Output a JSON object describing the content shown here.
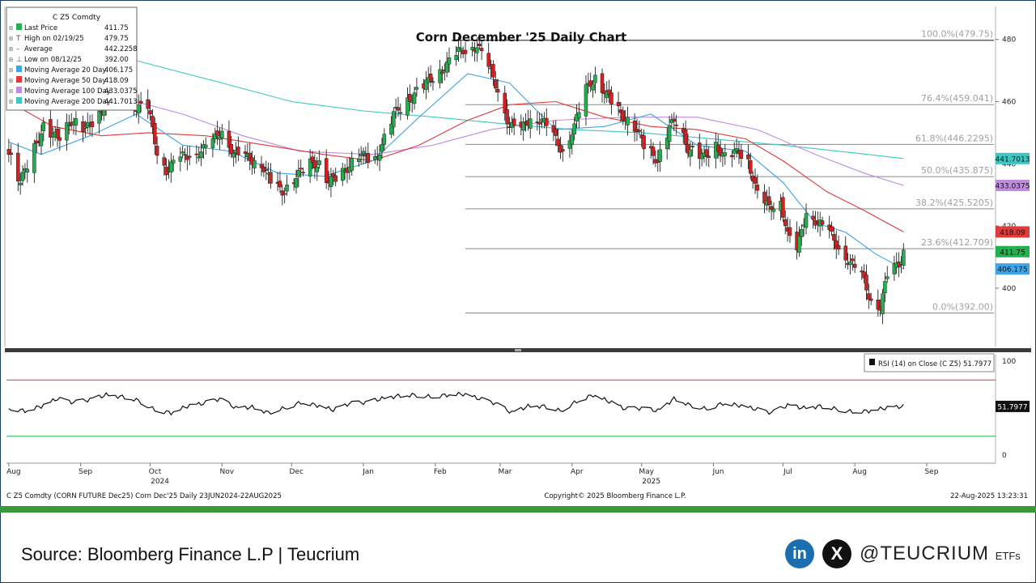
{
  "footer": {
    "source": "Source: Bloomberg Finance L.P | Teucrium",
    "handle": "@TEUCRIUM",
    "handle_suffix": "ETFs",
    "linkedin_glyph": "in",
    "x_glyph": "X"
  },
  "colors": {
    "up": "#22b14c",
    "down": "#d42020",
    "ma20": "#3fa3e6",
    "ma50": "#e03a3a",
    "ma100": "#c08ae0",
    "ma200": "#3cc8c0",
    "fib": "#888888",
    "brand_green": "#3a9a3a"
  },
  "chart_data": [
    {
      "type": "candlestick",
      "title": "Corn December '25 Daily Chart",
      "ticker": "C Z5 Comdty",
      "legend_placement": "top-left",
      "legend": [
        {
          "label": "Last Price",
          "value": "411.75",
          "marker": "green-square"
        },
        {
          "label": "High on 02/19/25",
          "value": "479.75",
          "marker": "T"
        },
        {
          "label": "Average",
          "value": "442.2258",
          "marker": "dash"
        },
        {
          "label": "Low on 08/12/25",
          "value": "392.00",
          "marker": "L"
        },
        {
          "label": "Moving Average 20 Day",
          "value": "406.175",
          "marker": "ma20"
        },
        {
          "label": "Moving Average 50 Day",
          "value": "418.09",
          "marker": "ma50"
        },
        {
          "label": "Moving Average 100 Day",
          "value": "433.0375",
          "marker": "ma100"
        },
        {
          "label": "Moving Average 200 Day",
          "value": "441.7013",
          "marker": "ma200"
        }
      ],
      "ylim": [
        382,
        488
      ],
      "y_ticks": [
        400,
        420,
        440,
        460,
        480
      ],
      "fib_levels": [
        {
          "label": "100.0%(479.75)",
          "value": 479.75
        },
        {
          "label": "76.4%(459.041)",
          "value": 459.041
        },
        {
          "label": "61.8%(446.2295)",
          "value": 446.2295
        },
        {
          "label": "50.0%(435.875)",
          "value": 435.875
        },
        {
          "label": "38.2%(425.5205)",
          "value": 425.5205
        },
        {
          "label": "23.6%(412.709)",
          "value": 412.709
        },
        {
          "label": "0.0%(392.00)",
          "value": 392.0
        }
      ],
      "price_tags": [
        {
          "label": "441.7013",
          "value": 441.7013,
          "color": "#3cc8c0"
        },
        {
          "label": "433.0375",
          "value": 433.0375,
          "color": "#c08ae0"
        },
        {
          "label": "418.09",
          "value": 418.09,
          "color": "#e03a3a"
        },
        {
          "label": "411.75",
          "value": 411.75,
          "color": "#22b14c"
        },
        {
          "label": "406.175",
          "value": 406.175,
          "color": "#3fa3e6"
        }
      ],
      "price_path": [
        [
          "2024-08-01",
          444
        ],
        [
          "2024-08-06",
          434
        ],
        [
          "2024-08-12",
          445
        ],
        [
          "2024-08-16",
          452
        ],
        [
          "2024-08-22",
          448
        ],
        [
          "2024-08-28",
          454
        ],
        [
          "2024-09-03",
          451
        ],
        [
          "2024-09-09",
          456
        ],
        [
          "2024-09-13",
          462
        ],
        [
          "2024-09-19",
          464
        ],
        [
          "2024-09-25",
          458
        ],
        [
          "2024-09-30",
          458
        ],
        [
          "2024-10-04",
          444
        ],
        [
          "2024-10-08",
          438
        ],
        [
          "2024-10-14",
          442
        ],
        [
          "2024-10-18",
          443
        ],
        [
          "2024-10-23",
          444
        ],
        [
          "2024-10-29",
          448
        ],
        [
          "2024-11-01",
          451
        ],
        [
          "2024-11-06",
          443
        ],
        [
          "2024-11-12",
          442
        ],
        [
          "2024-11-18",
          440
        ],
        [
          "2024-11-22",
          434
        ],
        [
          "2024-11-27",
          431
        ],
        [
          "2024-12-03",
          436
        ],
        [
          "2024-12-09",
          440
        ],
        [
          "2024-12-13",
          440
        ],
        [
          "2024-12-17",
          434
        ],
        [
          "2024-12-23",
          437
        ],
        [
          "2024-12-30",
          443
        ],
        [
          "2025-01-06",
          441
        ],
        [
          "2025-01-10",
          448
        ],
        [
          "2025-01-14",
          456
        ],
        [
          "2025-01-21",
          461
        ],
        [
          "2025-01-27",
          465
        ],
        [
          "2025-01-31",
          468
        ],
        [
          "2025-02-05",
          471
        ],
        [
          "2025-02-11",
          476
        ],
        [
          "2025-02-19",
          478
        ],
        [
          "2025-02-24",
          471
        ],
        [
          "2025-02-28",
          464
        ],
        [
          "2025-03-05",
          452
        ],
        [
          "2025-03-10",
          451
        ],
        [
          "2025-03-14",
          455
        ],
        [
          "2025-03-19",
          454
        ],
        [
          "2025-03-24",
          449
        ],
        [
          "2025-03-28",
          444
        ],
        [
          "2025-04-02",
          452
        ],
        [
          "2025-04-07",
          464
        ],
        [
          "2025-04-11",
          468
        ],
        [
          "2025-04-16",
          462
        ],
        [
          "2025-04-22",
          456
        ],
        [
          "2025-04-28",
          452
        ],
        [
          "2025-05-02",
          446
        ],
        [
          "2025-05-08",
          441
        ],
        [
          "2025-05-13",
          452
        ],
        [
          "2025-05-16",
          454
        ],
        [
          "2025-05-21",
          445
        ],
        [
          "2025-05-28",
          442
        ],
        [
          "2025-06-02",
          446
        ],
        [
          "2025-06-06",
          442
        ],
        [
          "2025-06-12",
          444
        ],
        [
          "2025-06-16",
          441
        ],
        [
          "2025-06-20",
          430
        ],
        [
          "2025-06-25",
          426
        ],
        [
          "2025-06-30",
          428
        ],
        [
          "2025-07-03",
          417
        ],
        [
          "2025-07-07",
          412
        ],
        [
          "2025-07-11",
          425
        ],
        [
          "2025-07-16",
          421
        ],
        [
          "2025-07-21",
          418
        ],
        [
          "2025-07-25",
          413
        ],
        [
          "2025-07-30",
          408
        ],
        [
          "2025-08-04",
          404
        ],
        [
          "2025-08-08",
          396
        ],
        [
          "2025-08-12",
          394
        ],
        [
          "2025-08-15",
          404
        ],
        [
          "2025-08-20",
          408
        ],
        [
          "2025-08-22",
          411.75
        ]
      ],
      "ma20_path": [
        [
          "2024-08-01",
          447
        ],
        [
          "2024-08-15",
          443
        ],
        [
          "2024-09-05",
          449
        ],
        [
          "2024-09-25",
          456
        ],
        [
          "2024-10-15",
          446
        ],
        [
          "2024-11-05",
          444
        ],
        [
          "2024-11-25",
          437
        ],
        [
          "2024-12-15",
          436
        ],
        [
          "2025-01-05",
          441
        ],
        [
          "2025-01-25",
          455
        ],
        [
          "2025-02-15",
          469
        ],
        [
          "2025-03-05",
          466
        ],
        [
          "2025-03-25",
          451
        ],
        [
          "2025-04-15",
          452
        ],
        [
          "2025-05-05",
          456
        ],
        [
          "2025-05-25",
          446
        ],
        [
          "2025-06-15",
          444
        ],
        [
          "2025-07-01",
          434
        ],
        [
          "2025-07-15",
          421
        ],
        [
          "2025-07-28",
          418
        ],
        [
          "2025-08-10",
          411
        ],
        [
          "2025-08-22",
          406.175
        ]
      ],
      "ma50_path": [
        [
          "2024-08-01",
          460
        ],
        [
          "2024-08-20",
          452
        ],
        [
          "2024-09-10",
          449
        ],
        [
          "2024-09-30",
          450
        ],
        [
          "2024-10-25",
          449
        ],
        [
          "2024-11-20",
          446
        ],
        [
          "2024-12-15",
          443
        ],
        [
          "2025-01-05",
          441
        ],
        [
          "2025-01-25",
          446
        ],
        [
          "2025-02-15",
          454
        ],
        [
          "2025-03-05",
          459
        ],
        [
          "2025-03-25",
          460
        ],
        [
          "2025-04-15",
          455
        ],
        [
          "2025-05-05",
          452
        ],
        [
          "2025-05-25",
          451
        ],
        [
          "2025-06-15",
          448
        ],
        [
          "2025-07-01",
          441
        ],
        [
          "2025-07-20",
          431
        ],
        [
          "2025-08-05",
          425
        ],
        [
          "2025-08-22",
          418.09
        ]
      ],
      "ma100_path": [
        [
          "2024-08-01",
          474
        ],
        [
          "2024-08-25",
          468
        ],
        [
          "2024-09-20",
          461
        ],
        [
          "2024-10-15",
          456
        ],
        [
          "2024-11-10",
          449
        ],
        [
          "2024-12-05",
          444
        ],
        [
          "2025-01-05",
          443
        ],
        [
          "2025-01-31",
          446
        ],
        [
          "2025-02-25",
          451
        ],
        [
          "2025-03-25",
          454
        ],
        [
          "2025-04-25",
          455
        ],
        [
          "2025-05-25",
          455
        ],
        [
          "2025-06-20",
          451
        ],
        [
          "2025-07-15",
          443
        ],
        [
          "2025-08-05",
          437
        ],
        [
          "2025-08-22",
          433.0375
        ]
      ],
      "ma200_path": [
        [
          "2024-08-01",
          484
        ],
        [
          "2024-09-01",
          478
        ],
        [
          "2024-10-01",
          472
        ],
        [
          "2024-11-01",
          466
        ],
        [
          "2024-12-01",
          460
        ],
        [
          "2025-01-01",
          457
        ],
        [
          "2025-02-01",
          455
        ],
        [
          "2025-03-01",
          453
        ],
        [
          "2025-04-01",
          451
        ],
        [
          "2025-05-01",
          450
        ],
        [
          "2025-06-01",
          448
        ],
        [
          "2025-07-01",
          446
        ],
        [
          "2025-08-01",
          443.5
        ],
        [
          "2025-08-22",
          441.7013
        ]
      ],
      "rsi": {
        "legend": "RSI (14)  on Close (C Z5) 51.7977",
        "last_label": "51.7977",
        "ylim": [
          0,
          100
        ],
        "y_ticks": [
          0,
          100
        ],
        "overbought": 80,
        "oversold": 20,
        "path": [
          [
            "2024-08-01",
            50
          ],
          [
            "2024-08-08",
            47
          ],
          [
            "2024-08-15",
            52
          ],
          [
            "2024-08-22",
            60
          ],
          [
            "2024-08-29",
            56
          ],
          [
            "2024-09-05",
            59
          ],
          [
            "2024-09-12",
            64
          ],
          [
            "2024-09-19",
            62
          ],
          [
            "2024-09-26",
            58
          ],
          [
            "2024-10-03",
            48
          ],
          [
            "2024-10-10",
            45
          ],
          [
            "2024-10-17",
            52
          ],
          [
            "2024-10-24",
            55
          ],
          [
            "2024-10-31",
            60
          ],
          [
            "2024-11-07",
            50
          ],
          [
            "2024-11-14",
            51
          ],
          [
            "2024-11-21",
            45
          ],
          [
            "2024-11-28",
            50
          ],
          [
            "2024-12-05",
            56
          ],
          [
            "2024-12-12",
            53
          ],
          [
            "2024-12-19",
            48
          ],
          [
            "2024-12-26",
            55
          ],
          [
            "2025-01-02",
            56
          ],
          [
            "2025-01-09",
            60
          ],
          [
            "2025-01-16",
            63
          ],
          [
            "2025-01-23",
            64
          ],
          [
            "2025-01-30",
            62
          ],
          [
            "2025-02-06",
            64
          ],
          [
            "2025-02-13",
            65
          ],
          [
            "2025-02-20",
            60
          ],
          [
            "2025-02-27",
            55
          ],
          [
            "2025-03-06",
            45
          ],
          [
            "2025-03-13",
            52
          ],
          [
            "2025-03-20",
            52
          ],
          [
            "2025-03-27",
            47
          ],
          [
            "2025-04-03",
            57
          ],
          [
            "2025-04-10",
            64
          ],
          [
            "2025-04-17",
            57
          ],
          [
            "2025-04-24",
            49
          ],
          [
            "2025-05-01",
            50
          ],
          [
            "2025-05-08",
            47
          ],
          [
            "2025-05-15",
            60
          ],
          [
            "2025-05-22",
            53
          ],
          [
            "2025-05-29",
            49
          ],
          [
            "2025-06-05",
            55
          ],
          [
            "2025-06-12",
            53
          ],
          [
            "2025-06-19",
            49
          ],
          [
            "2025-06-26",
            45
          ],
          [
            "2025-07-03",
            53
          ],
          [
            "2025-07-10",
            50
          ],
          [
            "2025-07-17",
            52
          ],
          [
            "2025-07-24",
            49
          ],
          [
            "2025-07-31",
            46
          ],
          [
            "2025-08-07",
            47
          ],
          [
            "2025-08-14",
            50
          ],
          [
            "2025-08-22",
            51.7977
          ]
        ]
      },
      "x_range": [
        "2024-07-31",
        "2025-09-30"
      ],
      "x_months": [
        {
          "label": "Aug",
          "date": "2024-08-01"
        },
        {
          "label": "Sep",
          "date": "2024-09-01"
        },
        {
          "label": "Oct",
          "date": "2024-10-01"
        },
        {
          "label": "Nov",
          "date": "2024-11-01"
        },
        {
          "label": "Dec",
          "date": "2024-12-01"
        },
        {
          "label": "Jan",
          "date": "2025-01-01"
        },
        {
          "label": "Feb",
          "date": "2025-02-01"
        },
        {
          "label": "Mar",
          "date": "2025-03-01"
        },
        {
          "label": "Apr",
          "date": "2025-04-01"
        },
        {
          "label": "May",
          "date": "2025-05-01"
        },
        {
          "label": "Jun",
          "date": "2025-06-01"
        },
        {
          "label": "Jul",
          "date": "2025-07-01"
        },
        {
          "label": "Aug",
          "date": "2025-08-01"
        },
        {
          "label": "Sep",
          "date": "2025-09-01"
        }
      ],
      "x_years": [
        {
          "label": "2024",
          "date": "2024-10-01"
        },
        {
          "label": "2025",
          "date": "2025-05-01"
        }
      ],
      "bottom_left": "C Z5 Comdty (CORN FUTURE     Dec25) Corn Dec'25  Daily 23JUN2024-22AUG2025",
      "bottom_center": "Copyright© 2025 Bloomberg Finance L.P.",
      "bottom_right": "22-Aug-2025 13:23:31"
    }
  ]
}
